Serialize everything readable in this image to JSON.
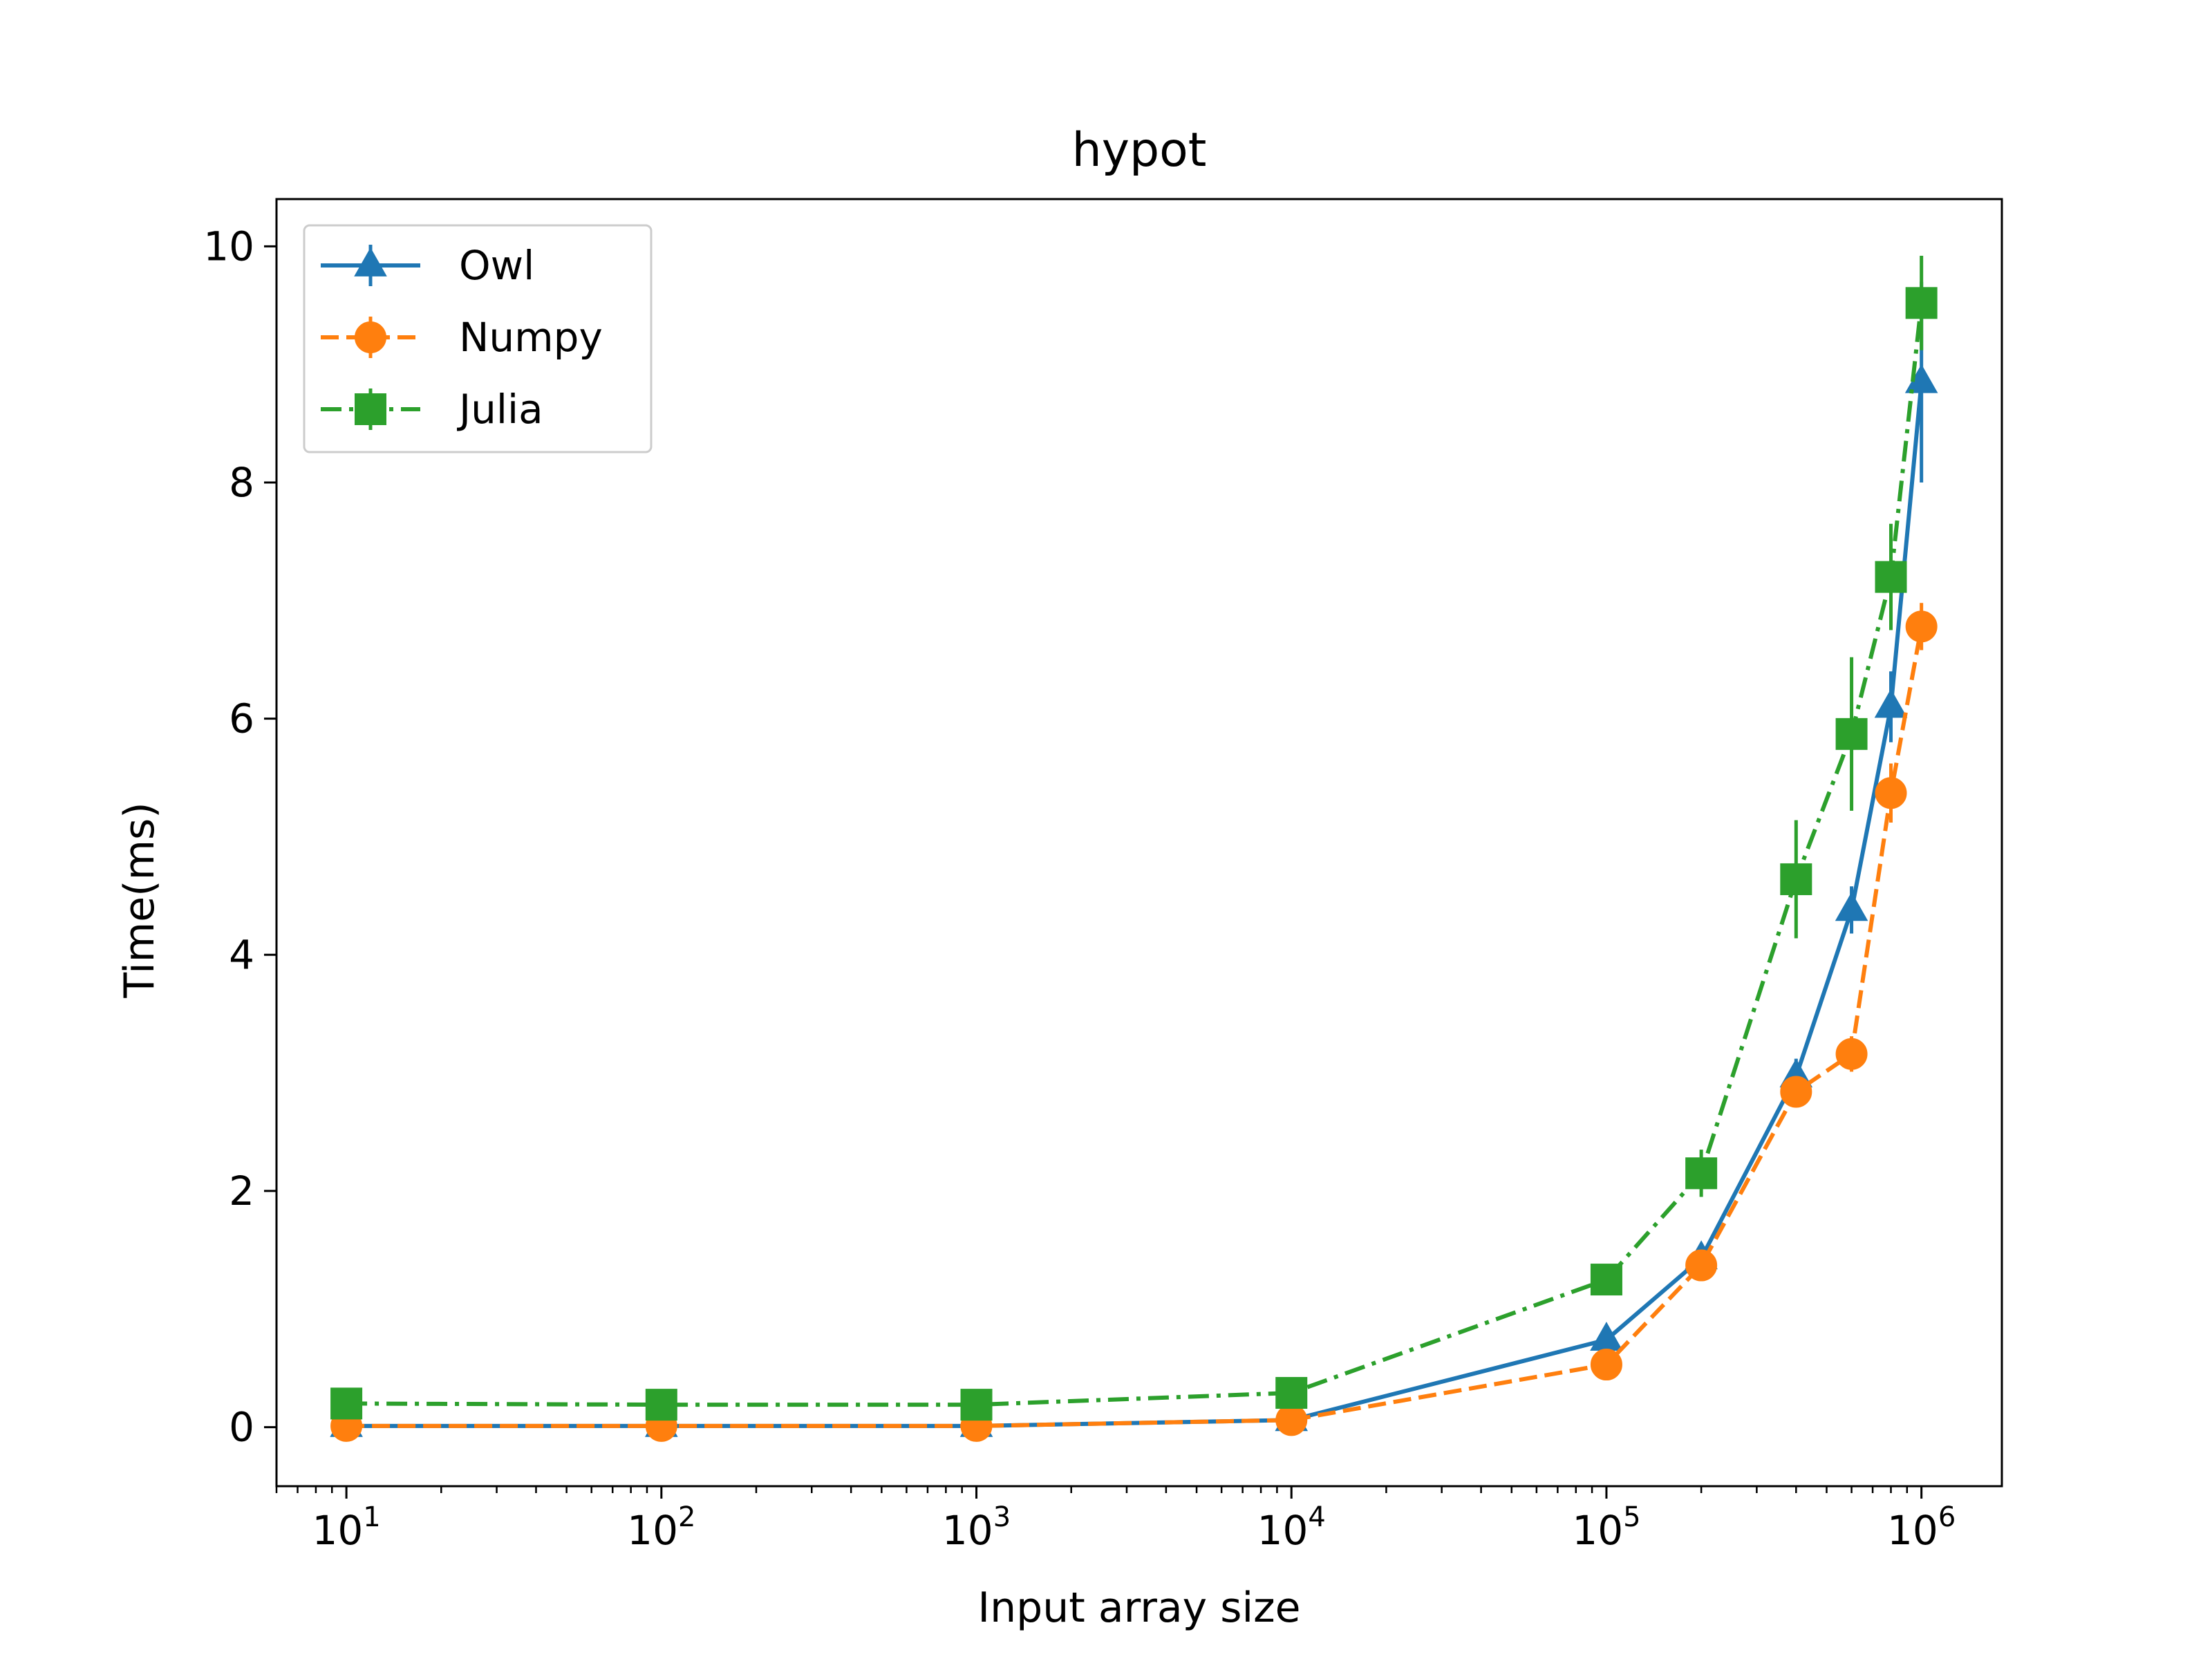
{
  "chart_data": {
    "type": "line",
    "title": "hypot",
    "xlabel": "Input array size",
    "ylabel": "Time(ms)",
    "xscale": "log",
    "xlim": [
      6,
      1800000
    ],
    "ylim": [
      -0.5,
      10.4
    ],
    "x_ticks": [
      {
        "value": 10,
        "base": "10",
        "exp": "1"
      },
      {
        "value": 100,
        "base": "10",
        "exp": "2"
      },
      {
        "value": 1000,
        "base": "10",
        "exp": "3"
      },
      {
        "value": 10000,
        "base": "10",
        "exp": "4"
      },
      {
        "value": 100000,
        "base": "10",
        "exp": "5"
      },
      {
        "value": 1000000,
        "base": "10",
        "exp": "6"
      }
    ],
    "y_ticks": [
      {
        "value": 0,
        "label": "0"
      },
      {
        "value": 2,
        "label": "2"
      },
      {
        "value": 4,
        "label": "4"
      },
      {
        "value": 6,
        "label": "6"
      },
      {
        "value": 8,
        "label": "8"
      },
      {
        "value": 10,
        "label": "10"
      }
    ],
    "legend_position": "upper-left",
    "grid": false,
    "series": [
      {
        "name": "Owl",
        "color": "#1f77b4",
        "marker": "triangle",
        "linestyle": "solid",
        "x": [
          10,
          100,
          1000,
          10000,
          100000,
          200000,
          400000,
          600000,
          800000,
          1000000
        ],
        "y": [
          0.01,
          0.01,
          0.01,
          0.06,
          0.74,
          1.43,
          2.97,
          4.38,
          6.1,
          8.85
        ],
        "err": [
          0.01,
          0.01,
          0.01,
          0.02,
          0.06,
          0.1,
          0.15,
          0.2,
          0.3,
          0.85
        ]
      },
      {
        "name": "Numpy",
        "color": "#ff7f0e",
        "marker": "circle",
        "linestyle": "dashed",
        "x": [
          10,
          100,
          1000,
          10000,
          100000,
          200000,
          400000,
          600000,
          800000,
          1000000
        ],
        "y": [
          0.01,
          0.01,
          0.01,
          0.06,
          0.53,
          1.37,
          2.84,
          3.16,
          5.37,
          6.78
        ],
        "err": [
          0.01,
          0.01,
          0.01,
          0.02,
          0.05,
          0.08,
          0.12,
          0.15,
          0.25,
          0.2
        ]
      },
      {
        "name": "Julia",
        "color": "#2ca02c",
        "marker": "square",
        "linestyle": "dashdot",
        "x": [
          10,
          100,
          1000,
          10000,
          100000,
          200000,
          400000,
          600000,
          800000,
          1000000
        ],
        "y": [
          0.2,
          0.19,
          0.19,
          0.29,
          1.25,
          2.15,
          4.64,
          5.87,
          7.2,
          9.52
        ],
        "err": [
          0.02,
          0.02,
          0.02,
          0.03,
          0.08,
          0.2,
          0.5,
          0.65,
          0.45,
          0.4
        ]
      }
    ]
  }
}
